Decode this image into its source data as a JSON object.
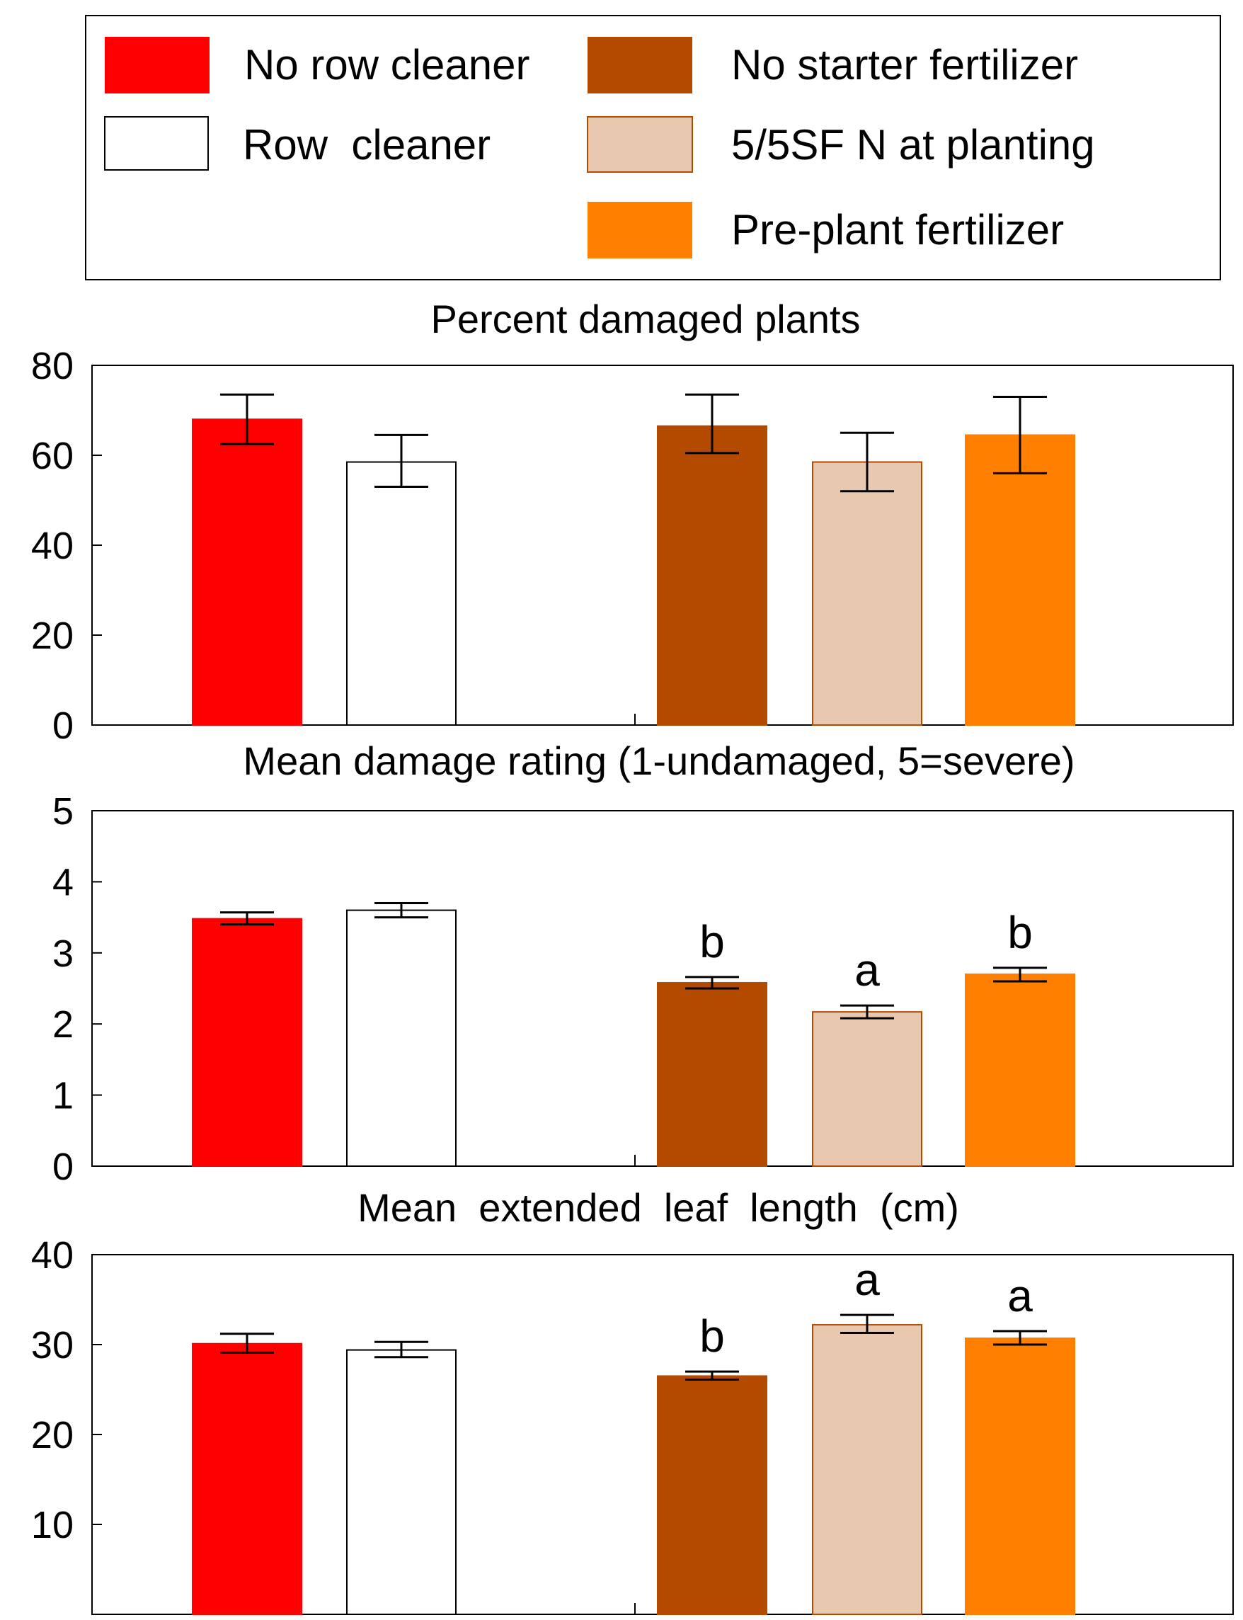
{
  "legend": {
    "items": [
      {
        "key": "no_row_cleaner",
        "label": "No row cleaner",
        "color": "#ff0000",
        "border": "#ff0000"
      },
      {
        "key": "row_cleaner",
        "label": "Row  cleaner",
        "color": "#ffffff",
        "border": "#000000"
      },
      {
        "key": "no_starter",
        "label": "No starter fertilizer",
        "color": "#b34a00",
        "border": "#b34a00"
      },
      {
        "key": "sf_planting",
        "label": "5/5SF N at planting",
        "color": "#e8c9b0",
        "border": "#b34a00"
      },
      {
        "key": "preplant",
        "label": "Pre-plant fertilizer",
        "color": "#ff8000",
        "border": "#ff8000"
      }
    ]
  },
  "chart_data": [
    {
      "type": "bar",
      "title": "Percent damaged plants",
      "xlabel": "",
      "ylabel": "",
      "ylim": [
        0,
        80
      ],
      "yticks": [
        0,
        20,
        40,
        60,
        80
      ],
      "categories": [
        "No row cleaner",
        "Row  cleaner",
        "No starter fertilizer",
        "5/5SF N at planting",
        "Pre-plant fertilizer"
      ],
      "values": [
        68,
        58.5,
        66.5,
        58.5,
        64.5
      ],
      "error_low": [
        62.5,
        53,
        60.5,
        52,
        56
      ],
      "error_high": [
        73.5,
        64.5,
        73.5,
        65,
        73
      ],
      "annotations": [
        "",
        "",
        "",
        "",
        ""
      ]
    },
    {
      "type": "bar",
      "title": "Mean damage rating (1-undamaged, 5=severe)",
      "xlabel": "",
      "ylabel": "",
      "ylim": [
        0,
        5
      ],
      "yticks": [
        0,
        1,
        2,
        3,
        4,
        5
      ],
      "categories": [
        "No row cleaner",
        "Row  cleaner",
        "No starter fertilizer",
        "5/5SF N at planting",
        "Pre-plant fertilizer"
      ],
      "values": [
        3.48,
        3.6,
        2.58,
        2.17,
        2.7
      ],
      "error_low": [
        3.4,
        3.5,
        2.5,
        2.08,
        2.6
      ],
      "error_high": [
        3.57,
        3.7,
        2.66,
        2.26,
        2.79
      ],
      "annotations": [
        "",
        "",
        "b",
        "a",
        "b"
      ]
    },
    {
      "type": "bar",
      "title": "Mean  extended  leaf  length  (cm)",
      "xlabel": "",
      "ylabel": "",
      "ylim": [
        0,
        40
      ],
      "yticks": [
        10,
        20,
        30,
        40
      ],
      "categories": [
        "No row cleaner",
        "Row  cleaner",
        "No starter fertilizer",
        "5/5SF N at planting",
        "Pre-plant fertilizer"
      ],
      "values": [
        30.1,
        29.4,
        26.5,
        32.2,
        30.7
      ],
      "error_low": [
        29.1,
        28.6,
        26.1,
        31.3,
        30.0
      ],
      "error_high": [
        31.2,
        30.3,
        27.0,
        33.3,
        31.5
      ],
      "annotations": [
        "",
        "",
        "b",
        "a",
        "a"
      ]
    }
  ]
}
